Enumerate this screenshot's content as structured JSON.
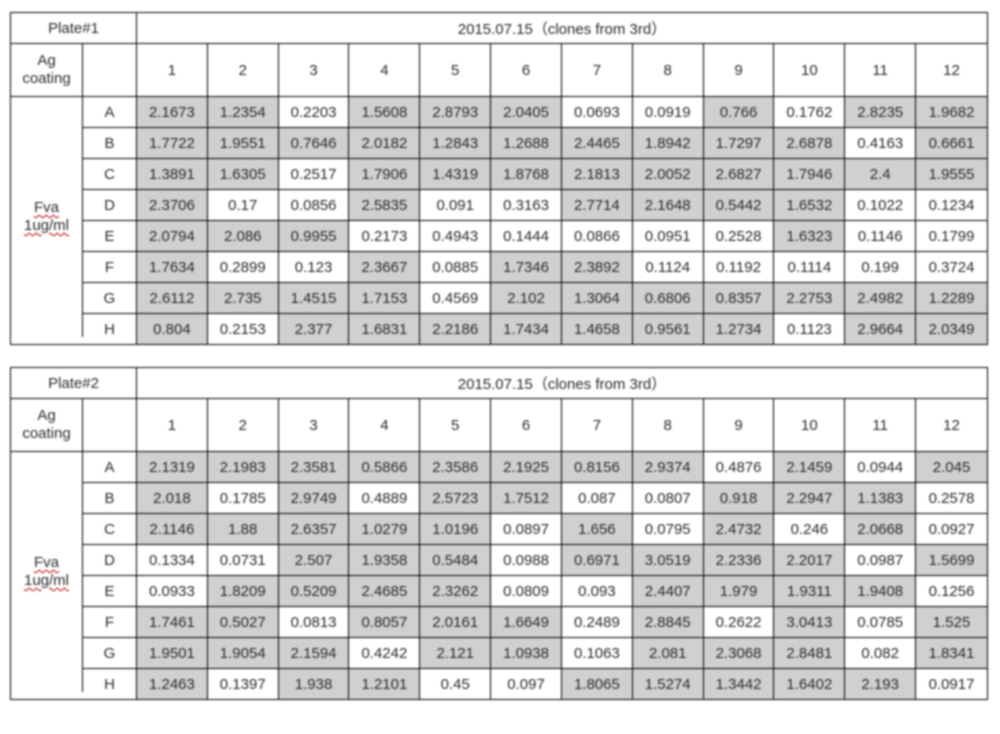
{
  "shaded_color": "#d0d0d0",
  "bg_color": "#ffffff",
  "border_color": "#000000",
  "text_color": "#2a2a2a",
  "font_family": "Arial",
  "font_size_pt": 11,
  "col_headers": [
    "1",
    "2",
    "3",
    "4",
    "5",
    "6",
    "7",
    "8",
    "9",
    "10",
    "11",
    "12"
  ],
  "row_labels": [
    "A",
    "B",
    "C",
    "D",
    "E",
    "F",
    "G",
    "H"
  ],
  "labels": {
    "ag_coating": "Ag coating",
    "fva": "Fva",
    "concentration": "1ug/ml"
  },
  "plates": [
    {
      "title": "Plate#1",
      "date_header": "2015.07.15（clones from 3rd）",
      "rows": [
        [
          2.1673,
          1.2354,
          0.2203,
          1.5608,
          2.8793,
          2.0405,
          0.0693,
          0.0919,
          0.766,
          0.1762,
          2.8235,
          1.9682
        ],
        [
          1.7722,
          1.9551,
          0.7646,
          2.0182,
          1.2843,
          1.2688,
          2.4465,
          1.8942,
          1.7297,
          2.6878,
          0.4163,
          0.6661
        ],
        [
          1.3891,
          1.6305,
          0.2517,
          1.7906,
          1.4319,
          1.8768,
          2.1813,
          2.0052,
          2.6827,
          1.7946,
          2.4,
          1.9555
        ],
        [
          2.3706,
          0.17,
          0.0856,
          2.5835,
          0.091,
          0.3163,
          2.7714,
          2.1648,
          0.5442,
          1.6532,
          0.1022,
          0.1234
        ],
        [
          2.0794,
          2.086,
          0.9955,
          0.2173,
          0.4943,
          0.1444,
          0.0866,
          0.0951,
          0.2528,
          1.6323,
          0.1146,
          0.1799
        ],
        [
          1.7634,
          0.2899,
          0.123,
          2.3667,
          0.0885,
          1.7346,
          2.3892,
          0.1124,
          0.1192,
          0.1114,
          0.199,
          0.3724
        ],
        [
          2.6112,
          2.735,
          1.4515,
          1.7153,
          0.4569,
          2.102,
          1.3064,
          0.6806,
          0.8357,
          2.2753,
          2.4982,
          1.2289
        ],
        [
          0.804,
          0.2153,
          2.377,
          1.6831,
          2.2186,
          1.7434,
          1.4658,
          0.9561,
          1.2734,
          0.1123,
          2.9664,
          2.0349
        ]
      ],
      "shaded": [
        [
          1,
          1,
          0,
          1,
          1,
          1,
          0,
          0,
          1,
          0,
          1,
          1
        ],
        [
          1,
          1,
          1,
          1,
          1,
          1,
          1,
          1,
          1,
          1,
          0,
          1
        ],
        [
          1,
          1,
          0,
          1,
          1,
          1,
          1,
          1,
          1,
          1,
          1,
          1
        ],
        [
          1,
          0,
          0,
          1,
          0,
          0,
          1,
          1,
          1,
          1,
          0,
          0
        ],
        [
          1,
          1,
          1,
          0,
          0,
          0,
          0,
          0,
          0,
          1,
          0,
          0
        ],
        [
          1,
          0,
          0,
          1,
          0,
          1,
          1,
          0,
          0,
          0,
          0,
          0
        ],
        [
          1,
          1,
          1,
          1,
          0,
          1,
          1,
          1,
          1,
          1,
          1,
          1
        ],
        [
          1,
          0,
          1,
          1,
          1,
          1,
          1,
          1,
          1,
          0,
          1,
          1
        ]
      ]
    },
    {
      "title": "Plate#2",
      "date_header": "2015.07.15（clones from 3rd）",
      "rows": [
        [
          2.1319,
          2.1983,
          2.3581,
          0.5866,
          2.3586,
          2.1925,
          0.8156,
          2.9374,
          0.4876,
          2.1459,
          0.0944,
          2.045
        ],
        [
          2.018,
          0.1785,
          2.9749,
          0.4889,
          2.5723,
          1.7512,
          0.087,
          0.0807,
          0.918,
          2.2947,
          1.1383,
          0.2578
        ],
        [
          2.1146,
          1.88,
          2.6357,
          1.0279,
          1.0196,
          0.0897,
          1.656,
          0.0795,
          2.4732,
          0.246,
          2.0668,
          0.0927
        ],
        [
          0.1334,
          0.0731,
          2.507,
          1.9358,
          0.5484,
          0.0988,
          0.6971,
          3.0519,
          2.2336,
          2.2017,
          0.0987,
          1.5699
        ],
        [
          0.0933,
          1.8209,
          0.5209,
          2.4685,
          2.3262,
          0.0809,
          0.093,
          2.4407,
          1.979,
          1.9311,
          1.9408,
          0.1256
        ],
        [
          1.7461,
          0.5027,
          0.0813,
          0.8057,
          2.0161,
          1.6649,
          0.2489,
          2.8845,
          0.2622,
          3.0413,
          0.0785,
          1.525
        ],
        [
          1.9501,
          1.9054,
          2.1594,
          0.4242,
          2.121,
          1.0938,
          0.1063,
          2.081,
          2.3068,
          2.8481,
          0.082,
          1.8341
        ],
        [
          1.2463,
          0.1397,
          1.938,
          1.2101,
          0.45,
          0.097,
          1.8065,
          1.5274,
          1.3442,
          1.6402,
          2.193,
          0.0917
        ]
      ],
      "shaded": [
        [
          1,
          1,
          1,
          1,
          1,
          1,
          1,
          1,
          0,
          1,
          0,
          1
        ],
        [
          1,
          0,
          1,
          0,
          1,
          1,
          0,
          0,
          1,
          1,
          1,
          0
        ],
        [
          1,
          1,
          1,
          1,
          1,
          0,
          1,
          0,
          1,
          0,
          1,
          0
        ],
        [
          0,
          0,
          1,
          1,
          1,
          0,
          1,
          1,
          1,
          1,
          0,
          1
        ],
        [
          0,
          1,
          1,
          1,
          1,
          0,
          0,
          1,
          1,
          1,
          1,
          0
        ],
        [
          1,
          1,
          0,
          1,
          1,
          1,
          0,
          1,
          0,
          1,
          0,
          1
        ],
        [
          1,
          1,
          1,
          0,
          1,
          1,
          0,
          1,
          1,
          1,
          0,
          1
        ],
        [
          1,
          0,
          1,
          1,
          0,
          0,
          1,
          1,
          1,
          1,
          1,
          0
        ]
      ]
    }
  ]
}
